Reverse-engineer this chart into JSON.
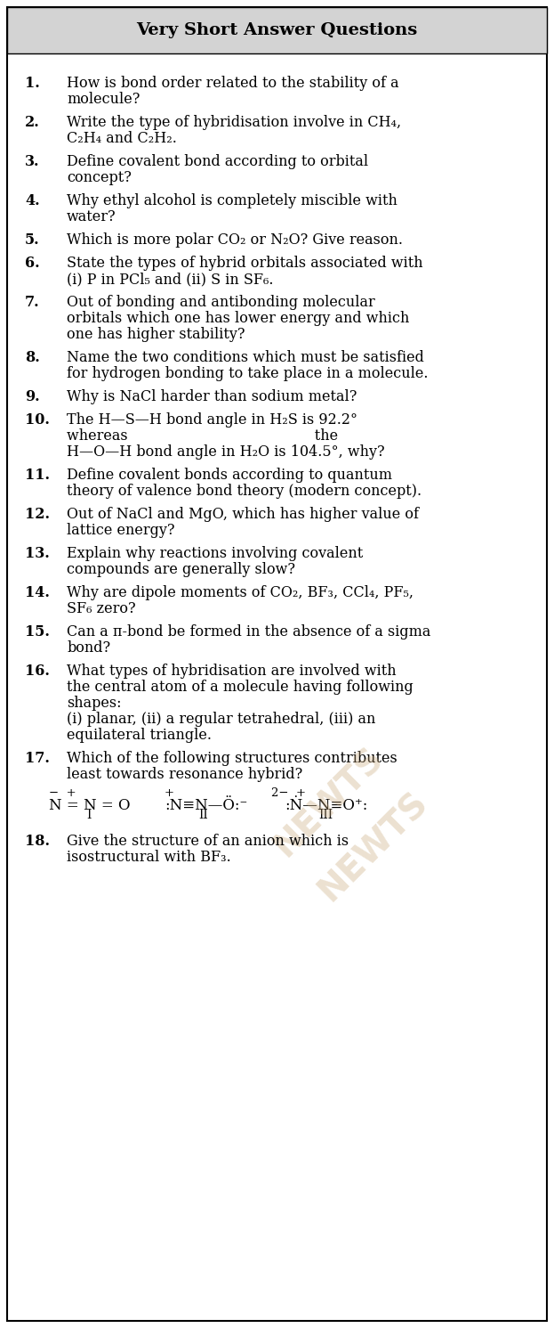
{
  "title": "Very Short Answer Questions",
  "bg_color": "#ffffff",
  "header_bg": "#d3d3d3",
  "border_color": "#000000",
  "title_color": "#000000",
  "text_color": "#000000",
  "questions": [
    {
      "num": "1.",
      "text": "How is bond order related to the stability of a\nmolecule?"
    },
    {
      "num": "2.",
      "text": "Write the type of hybridisation involve in CH₄,\nC₂H₄ and C₂H₂."
    },
    {
      "num": "3.",
      "text": "Define covalent bond according to orbital\nconcept?"
    },
    {
      "num": "4.",
      "text": "Why ethyl alcohol is completely miscible with\nwater?"
    },
    {
      "num": "5.",
      "text": "Which is more polar CO₂ or N₂O? Give reason."
    },
    {
      "num": "6.",
      "text": "State the types of hybrid orbitals associated with\n(i) P in PCl₅ and (ii) S in SF₆."
    },
    {
      "num": "7.",
      "text": "Out of bonding and antibonding molecular\norbitals which one has lower energy and which\none has higher stability?"
    },
    {
      "num": "8.",
      "text": "Name the two conditions which must be satisfied\nfor hydrogen bonding to take place in a molecule."
    },
    {
      "num": "9.",
      "text": "Why is NaCl harder than sodium metal?"
    },
    {
      "num": "10.",
      "text": "The H—S—H bond angle in H₂S is 92.2°\nwhereas                                         the\nH—O—H bond angle in H₂O is 104.5°, why?"
    },
    {
      "num": "11.",
      "text": "Define covalent bonds according to quantum\ntheory of valence bond theory (modern concept)."
    },
    {
      "num": "12.",
      "text": "Out of NaCl and MgO, which has higher value of\nlattice energy?"
    },
    {
      "num": "13.",
      "text": "Explain why reactions involving covalent\ncompounds are generally slow?"
    },
    {
      "num": "14.",
      "text": "Why are dipole moments of CO₂, BF₃, CCl₄, PF₅,\nSF₆ zero?"
    },
    {
      "num": "15.",
      "text": "Can a π-bond be formed in the absence of a sigma\nbond?"
    },
    {
      "num": "16.",
      "text": "What types of hybridisation are involved with\nthe central atom of a molecule having following\nshapes:\n(i) planar, (ii) a regular tetrahedral, (iii) an\nequilateral triangle."
    },
    {
      "num": "17.",
      "text": "Which of the following structures contributes\nleast towards resonance hybrid?"
    },
    {
      "num": "18.",
      "text": "Give the structure of an anion which is\nisostructural with BF₃."
    }
  ],
  "watermark_color": "#c8a87a",
  "q17_formula": "⁻  +                    +                  2−  +\nN = N = O  :N≡N—Ö:⁻  :Ṅ—N≡O⁺:\n      I                   II                    III"
}
